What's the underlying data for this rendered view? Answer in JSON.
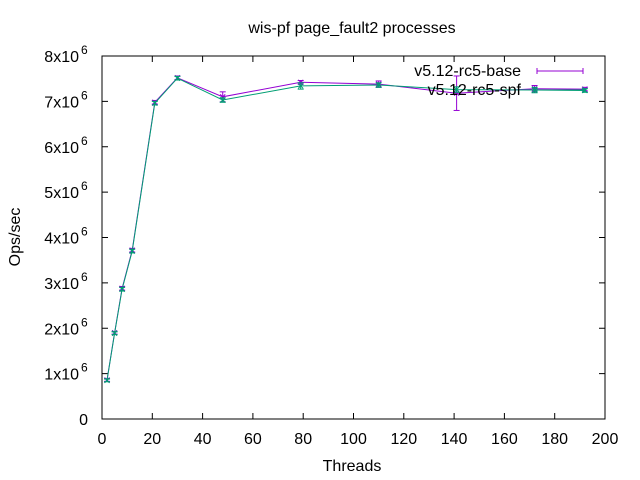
{
  "chart_data": {
    "type": "line",
    "title": "wis-pf page_fault2 processes",
    "xlabel": "Threads",
    "ylabel": "Ops/sec",
    "xlim": [
      0,
      200
    ],
    "ylim": [
      0,
      8000000
    ],
    "x_ticks": [
      "0",
      "20",
      "40",
      "60",
      "80",
      "100",
      "120",
      "140",
      "160",
      "180",
      "200"
    ],
    "y_ticks": [
      {
        "mant": "0",
        "exp": ""
      },
      {
        "mant": "1x10",
        "exp": "6"
      },
      {
        "mant": "2x10",
        "exp": "6"
      },
      {
        "mant": "3x10",
        "exp": "6"
      },
      {
        "mant": "4x10",
        "exp": "6"
      },
      {
        "mant": "5x10",
        "exp": "6"
      },
      {
        "mant": "6x10",
        "exp": "6"
      },
      {
        "mant": "7x10",
        "exp": "6"
      },
      {
        "mant": "8x10",
        "exp": "6"
      }
    ],
    "grid": false,
    "legend_position": "top-right",
    "error_bars": true,
    "series": [
      {
        "name": "v5.12-rc5-base",
        "color": "#9400d3",
        "x": [
          2,
          5,
          8,
          12,
          21,
          30,
          48,
          79,
          110,
          141,
          172,
          192
        ],
        "y": [
          860000,
          1900000,
          2880000,
          3720000,
          6980000,
          7520000,
          7100000,
          7420000,
          7380000,
          7180000,
          7280000,
          7270000
        ],
        "err": [
          30000,
          30000,
          40000,
          40000,
          40000,
          40000,
          110000,
          40000,
          70000,
          380000,
          70000,
          40000
        ]
      },
      {
        "name": "v5.12-rc5-spf",
        "color": "#009e73",
        "x": [
          2,
          5,
          8,
          12,
          21,
          30,
          48,
          79,
          110,
          141,
          172,
          192
        ],
        "y": [
          850000,
          1890000,
          2860000,
          3700000,
          6960000,
          7510000,
          7030000,
          7340000,
          7360000,
          7260000,
          7250000,
          7240000
        ],
        "err": [
          30000,
          30000,
          40000,
          40000,
          40000,
          40000,
          50000,
          70000,
          50000,
          60000,
          60000,
          40000
        ]
      }
    ]
  }
}
